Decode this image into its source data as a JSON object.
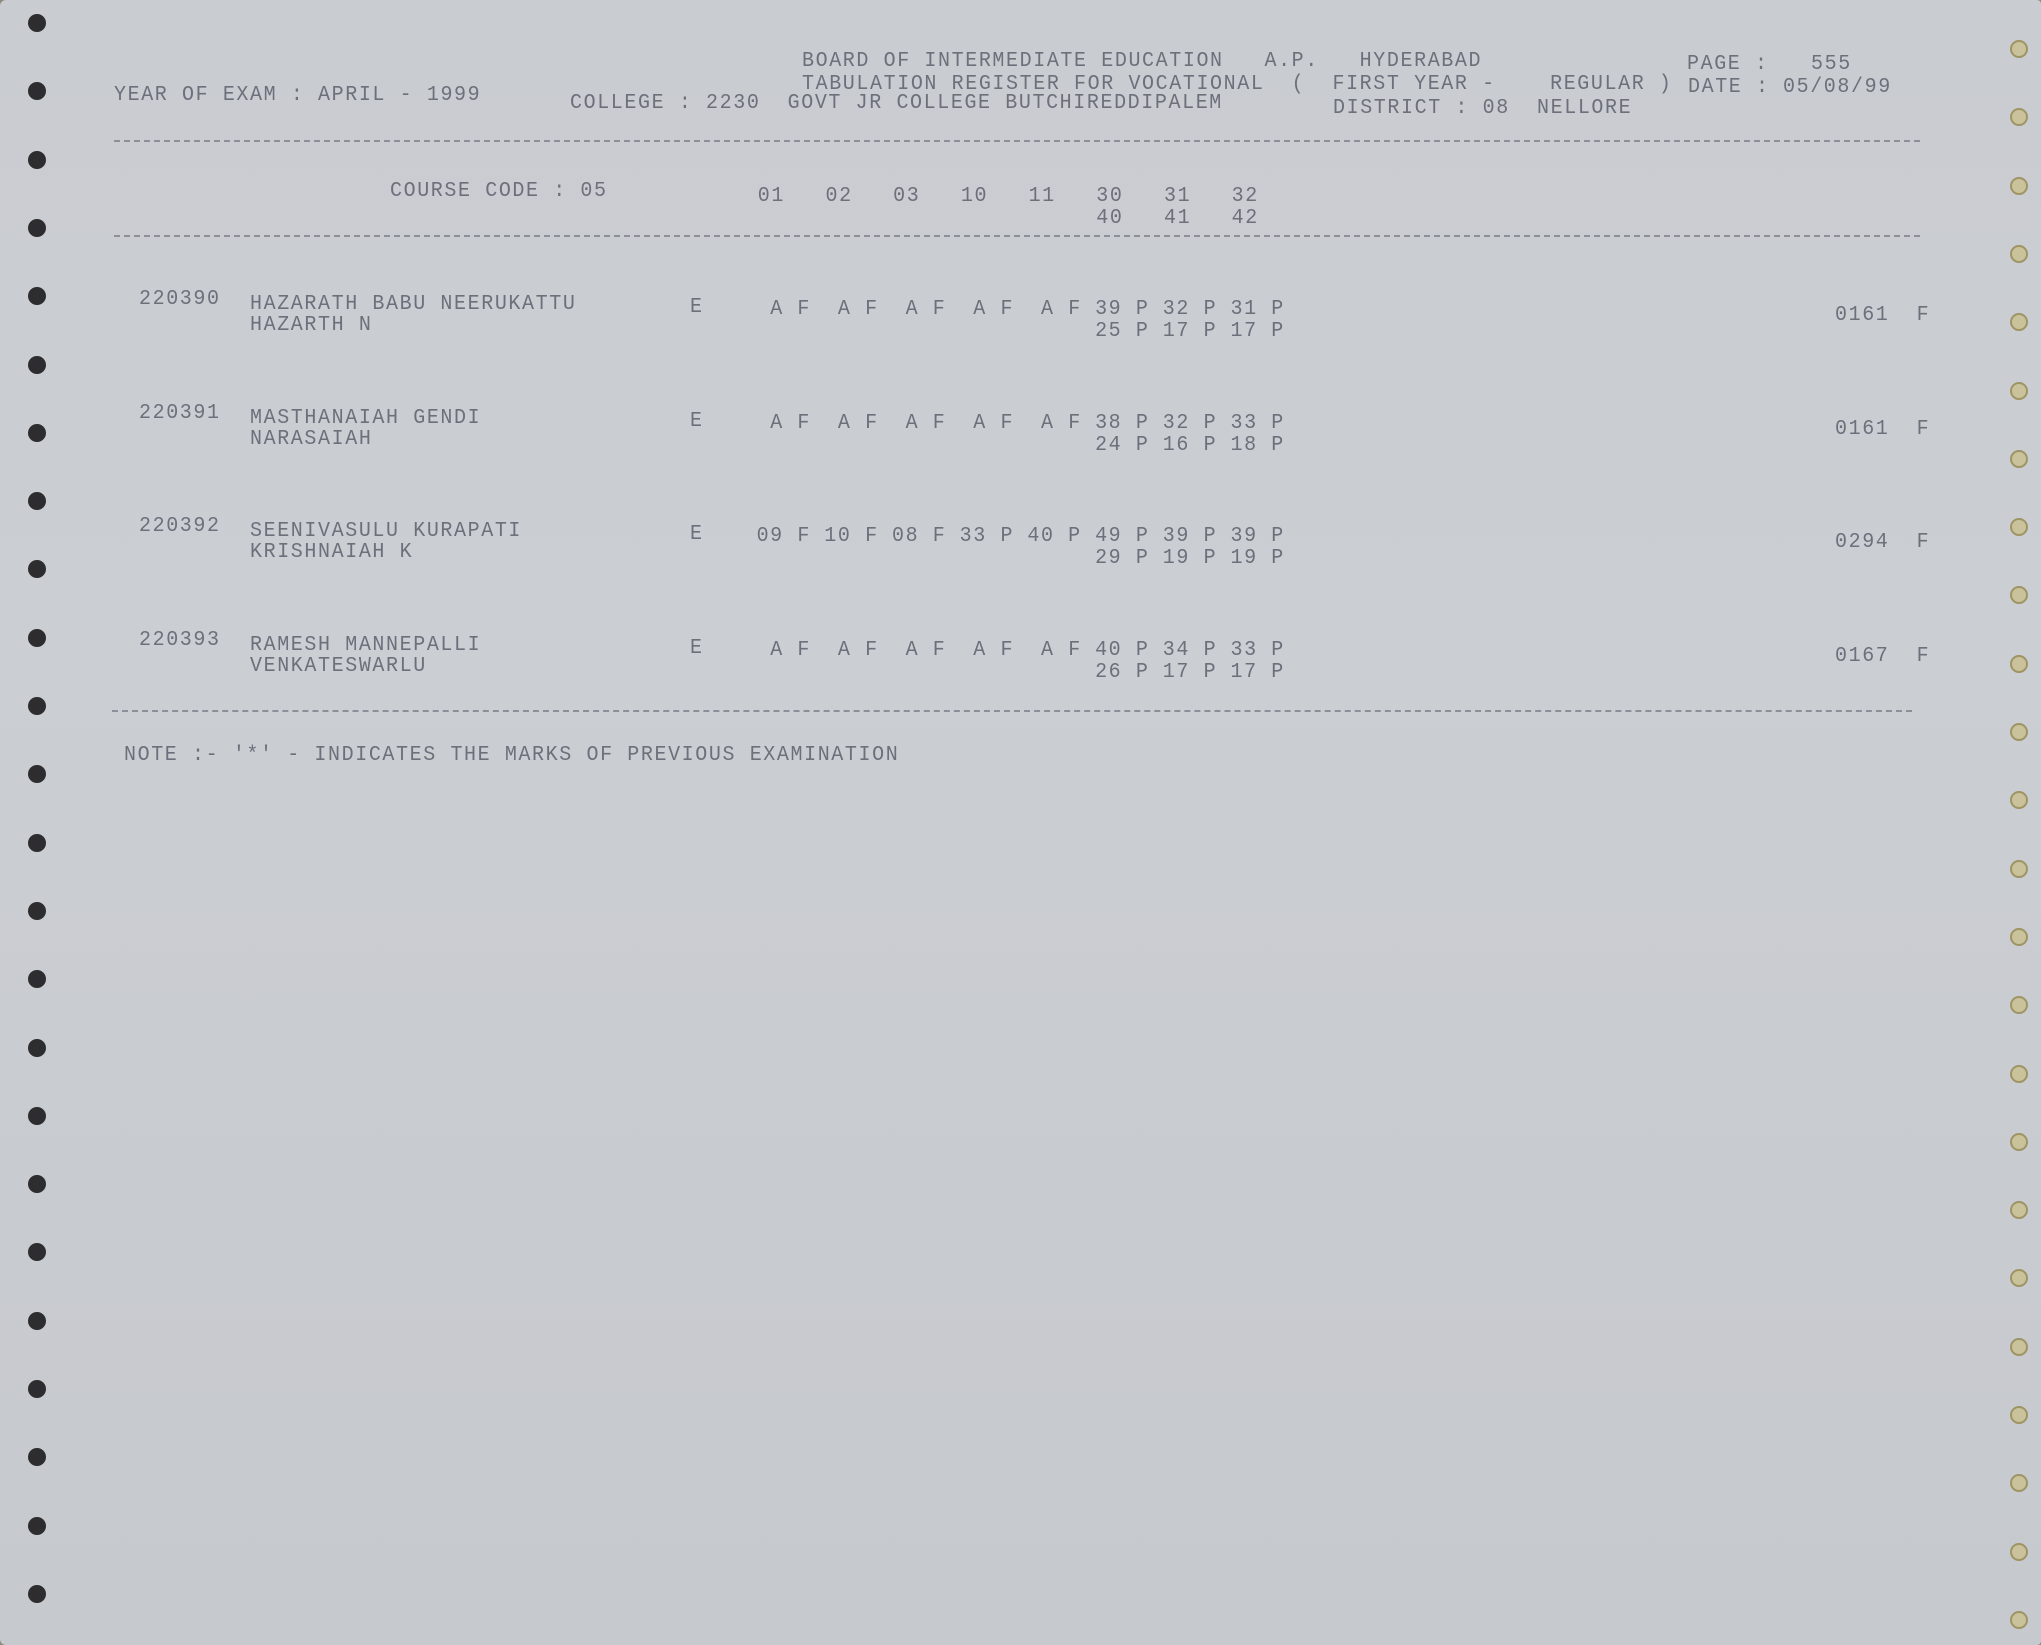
{
  "header": {
    "board": "BOARD OF INTERMEDIATE EDUCATION   A.P.   HYDERABAD",
    "register": "TABULATION REGISTER FOR VOCATIONAL  (  FIRST YEAR -    REGULAR )",
    "page_label": "PAGE :",
    "page_value": "555",
    "date_label": "DATE :",
    "date_value": "05/08/99",
    "year_of_exam": "YEAR OF EXAM : APRIL - 1999",
    "college": "COLLEGE : 2230  GOVT JR COLLEGE BUTCHIREDDIPALEM",
    "district": "DISTRICT : 08  NELLORE"
  },
  "columns": {
    "course_code": "COURSE CODE : 05",
    "codes_row1": [
      "01",
      "02",
      "03",
      "10",
      "11",
      "30",
      "31",
      "32"
    ],
    "codes_row2": [
      "40",
      "41",
      "42"
    ]
  },
  "students": [
    {
      "roll": "220390",
      "name1": "HAZARATH BABU NEERUKATTU",
      "name2": "HAZARTH N",
      "medium": "E",
      "marks1": [
        "A F",
        "A F",
        "A F",
        "A F",
        "A F",
        "39 P",
        "32 P",
        "31 P"
      ],
      "marks2": [
        "25 P",
        "17 P",
        "17 P"
      ],
      "total": "0161  F"
    },
    {
      "roll": "220391",
      "name1": "MASTHANAIAH GENDI",
      "name2": "NARASAIAH",
      "medium": "E",
      "marks1": [
        "A F",
        "A F",
        "A F",
        "A F",
        "A F",
        "38 P",
        "32 P",
        "33 P"
      ],
      "marks2": [
        "24 P",
        "16 P",
        "18 P"
      ],
      "total": "0161  F"
    },
    {
      "roll": "220392",
      "name1": "SEENIVASULU KURAPATI",
      "name2": "KRISHNAIAH K",
      "medium": "E",
      "marks1": [
        "09 F",
        "10 F",
        "08 F",
        "33 P",
        "40 P",
        "49 P",
        "39 P",
        "39 P"
      ],
      "marks2": [
        "29 P",
        "19 P",
        "19 P"
      ],
      "total": "0294  F"
    },
    {
      "roll": "220393",
      "name1": "RAMESH MANNEPALLI",
      "name2": "VENKATESWARLU",
      "medium": "E",
      "marks1": [
        "A F",
        "A F",
        "A F",
        "A F",
        "A F",
        "40 P",
        "34 P",
        "33 P"
      ],
      "marks2": [
        "26 P",
        "17 P",
        "17 P"
      ],
      "total": "0167  F"
    }
  ],
  "note": "NOTE :- '*' - INDICATES THE MARKS OF PREVIOUS EXAMINATION"
}
